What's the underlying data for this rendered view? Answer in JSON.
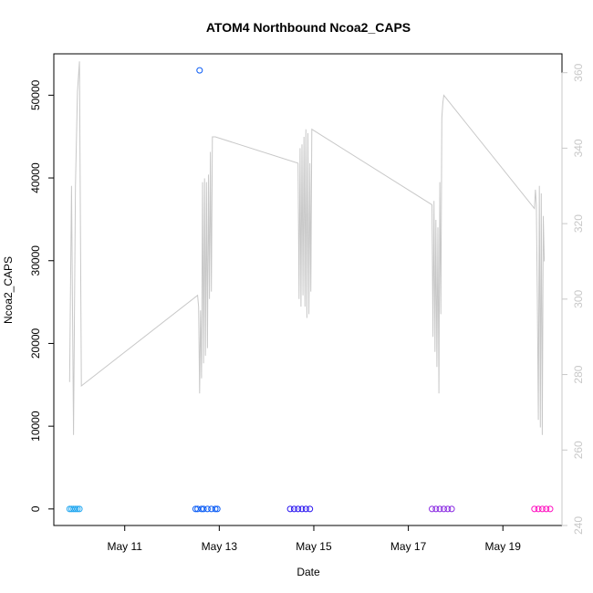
{
  "chart_data": {
    "type": "scatter",
    "title": "ATOM4 Northbound Ncoa2_CAPS",
    "xlabel": "Date",
    "ylabel": "Ncoa2_CAPS",
    "x_ticks": [
      {
        "date": "2024-05-11",
        "label": "May 11"
      },
      {
        "date": "2024-05-13",
        "label": "May 13"
      },
      {
        "date": "2024-05-15",
        "label": "May 15"
      },
      {
        "date": "2024-05-17",
        "label": "May 17"
      },
      {
        "date": "2024-05-19",
        "label": "May 19"
      }
    ],
    "xlim": [
      "2024-05-09T12:00",
      "2024-05-20T06:00"
    ],
    "ylim_left": [
      -2000,
      55000
    ],
    "yticks_left": [
      0,
      10000,
      20000,
      30000,
      40000,
      50000
    ],
    "ylim_right": [
      240,
      365
    ],
    "yticks_right": [
      240,
      260,
      280,
      300,
      320,
      340,
      360
    ],
    "grid": false,
    "points_series": [
      {
        "color": "#22a7f0",
        "values": [
          [
            "2024-05-09T20:00",
            0
          ],
          [
            "2024-05-09T21:00",
            0
          ],
          [
            "2024-05-09T22:00",
            0
          ],
          [
            "2024-05-09T23:00",
            0
          ],
          [
            "2024-05-10T00:00",
            0
          ],
          [
            "2024-05-10T01:00",
            0
          ]
        ]
      },
      {
        "color": "#0a5cf5",
        "values": [
          [
            "2024-05-12T12:00",
            0
          ],
          [
            "2024-05-12T13:00",
            0
          ],
          [
            "2024-05-12T14:00",
            53000
          ],
          [
            "2024-05-12T15:00",
            0
          ],
          [
            "2024-05-12T16:00",
            0
          ],
          [
            "2024-05-12T18:00",
            0
          ],
          [
            "2024-05-12T20:00",
            0
          ],
          [
            "2024-05-12T22:00",
            0
          ],
          [
            "2024-05-12T23:00",
            0
          ]
        ]
      },
      {
        "color": "#2a16f0",
        "values": [
          [
            "2024-05-14T12:00",
            0
          ],
          [
            "2024-05-14T14:00",
            0
          ],
          [
            "2024-05-14T16:00",
            0
          ],
          [
            "2024-05-14T18:00",
            0
          ],
          [
            "2024-05-14T20:00",
            0
          ],
          [
            "2024-05-14T22:00",
            0
          ]
        ]
      },
      {
        "color": "#8a2be2",
        "values": [
          [
            "2024-05-17T12:00",
            0
          ],
          [
            "2024-05-17T14:00",
            0
          ],
          [
            "2024-05-17T16:00",
            0
          ],
          [
            "2024-05-17T18:00",
            0
          ],
          [
            "2024-05-17T20:00",
            0
          ],
          [
            "2024-05-17T22:00",
            0
          ]
        ]
      },
      {
        "color": "#ff10c0",
        "values": [
          [
            "2024-05-19T16:00",
            0
          ],
          [
            "2024-05-19T18:00",
            0
          ],
          [
            "2024-05-19T20:00",
            0
          ],
          [
            "2024-05-19T22:00",
            0
          ],
          [
            "2024-05-20T00:00",
            0
          ]
        ]
      }
    ],
    "line_series": {
      "color": "#c8c8c8",
      "axis": "right",
      "values": [
        [
          "2024-05-09T20:00",
          278
        ],
        [
          "2024-05-09T21:00",
          330
        ],
        [
          "2024-05-09T22:00",
          264
        ],
        [
          "2024-05-09T23:00",
          330
        ],
        [
          "2024-05-10T00:00",
          355
        ],
        [
          "2024-05-10T01:00",
          363
        ],
        [
          "2024-05-10T02:00",
          277
        ],
        [
          "2024-05-12T13:00",
          301
        ],
        [
          "2024-05-12T13:30",
          298
        ],
        [
          "2024-05-12T14:00",
          275
        ],
        [
          "2024-05-12T14:30",
          297
        ],
        [
          "2024-05-12T15:00",
          279
        ],
        [
          "2024-05-12T15:30",
          331
        ],
        [
          "2024-05-12T16:00",
          283
        ],
        [
          "2024-05-12T16:30",
          332
        ],
        [
          "2024-05-12T17:00",
          285
        ],
        [
          "2024-05-12T17:30",
          331
        ],
        [
          "2024-05-12T18:00",
          287
        ],
        [
          "2024-05-12T18:30",
          333
        ],
        [
          "2024-05-12T19:00",
          300
        ],
        [
          "2024-05-12T19:30",
          339
        ],
        [
          "2024-05-12T20:00",
          302
        ],
        [
          "2024-05-12T20:30",
          343
        ],
        [
          "2024-05-12T22:00",
          343
        ],
        [
          "2024-05-14T16:00",
          336
        ],
        [
          "2024-05-14T16:30",
          300
        ],
        [
          "2024-05-14T17:00",
          340
        ],
        [
          "2024-05-14T17:30",
          298
        ],
        [
          "2024-05-14T18:00",
          341
        ],
        [
          "2024-05-14T18:30",
          301
        ],
        [
          "2024-05-14T19:00",
          343
        ],
        [
          "2024-05-14T19:30",
          298
        ],
        [
          "2024-05-14T20:00",
          345
        ],
        [
          "2024-05-14T20:30",
          295
        ],
        [
          "2024-05-14T21:00",
          344
        ],
        [
          "2024-05-14T21:30",
          296
        ],
        [
          "2024-05-14T22:00",
          336
        ],
        [
          "2024-05-14T22:30",
          302
        ],
        [
          "2024-05-14T23:00",
          345
        ],
        [
          "2024-05-17T12:00",
          325
        ],
        [
          "2024-05-17T12:30",
          290
        ],
        [
          "2024-05-17T13:00",
          326
        ],
        [
          "2024-05-17T13:30",
          286
        ],
        [
          "2024-05-17T14:00",
          321
        ],
        [
          "2024-05-17T14:30",
          282
        ],
        [
          "2024-05-17T15:00",
          319
        ],
        [
          "2024-05-17T15:30",
          275
        ],
        [
          "2024-05-17T16:00",
          331
        ],
        [
          "2024-05-17T16:30",
          296
        ],
        [
          "2024-05-17T17:00",
          348
        ],
        [
          "2024-05-17T17:30",
          352
        ],
        [
          "2024-05-17T18:00",
          354
        ],
        [
          "2024-05-19T16:00",
          324
        ],
        [
          "2024-05-19T16:30",
          329
        ],
        [
          "2024-05-19T17:00",
          325
        ],
        [
          "2024-05-19T17:30",
          300
        ],
        [
          "2024-05-19T18:00",
          268
        ],
        [
          "2024-05-19T18:30",
          330
        ],
        [
          "2024-05-19T19:00",
          266
        ],
        [
          "2024-05-19T19:30",
          328
        ],
        [
          "2024-05-19T20:00",
          264
        ],
        [
          "2024-05-19T20:30",
          322
        ],
        [
          "2024-05-19T21:00",
          310
        ]
      ]
    }
  }
}
